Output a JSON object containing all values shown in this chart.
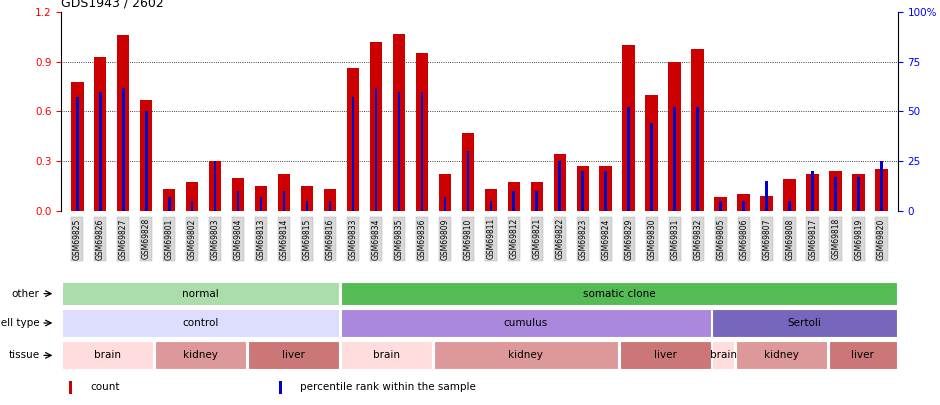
{
  "title": "GDS1943 / 2602",
  "samples": [
    "GSM69825",
    "GSM69826",
    "GSM69827",
    "GSM69828",
    "GSM69801",
    "GSM69802",
    "GSM69803",
    "GSM69804",
    "GSM69813",
    "GSM69814",
    "GSM69815",
    "GSM69816",
    "GSM69833",
    "GSM69834",
    "GSM69835",
    "GSM69836",
    "GSM69809",
    "GSM69810",
    "GSM69811",
    "GSM69812",
    "GSM69821",
    "GSM69822",
    "GSM69823",
    "GSM69824",
    "GSM69829",
    "GSM69830",
    "GSM69831",
    "GSM69832",
    "GSM69805",
    "GSM69806",
    "GSM69807",
    "GSM69808",
    "GSM69817",
    "GSM69818",
    "GSM69819",
    "GSM69820"
  ],
  "red_values": [
    0.78,
    0.93,
    1.06,
    0.67,
    0.13,
    0.17,
    0.3,
    0.2,
    0.15,
    0.22,
    0.15,
    0.13,
    0.86,
    1.02,
    1.07,
    0.95,
    0.22,
    0.47,
    0.13,
    0.17,
    0.17,
    0.34,
    0.27,
    0.27,
    1.0,
    0.7,
    0.9,
    0.98,
    0.08,
    0.1,
    0.09,
    0.19,
    0.22,
    0.24,
    0.22,
    0.25
  ],
  "blue_values": [
    0.57,
    0.6,
    0.62,
    0.5,
    0.07,
    0.05,
    0.25,
    0.1,
    0.07,
    0.1,
    0.05,
    0.05,
    0.57,
    0.62,
    0.6,
    0.6,
    0.07,
    0.3,
    0.05,
    0.1,
    0.1,
    0.25,
    0.2,
    0.2,
    0.52,
    0.44,
    0.52,
    0.52,
    0.05,
    0.05,
    0.15,
    0.05,
    0.2,
    0.17,
    0.17,
    0.25
  ],
  "ylim_left": [
    0,
    1.2
  ],
  "ylim_right": [
    0,
    100
  ],
  "yticks_left": [
    0,
    0.3,
    0.6,
    0.9,
    1.2
  ],
  "yticks_right": [
    0,
    25,
    50,
    75,
    100
  ],
  "bar_color": "#cc0000",
  "dot_color": "#0000cc",
  "other_row": {
    "groups": [
      {
        "label": "normal",
        "start": 0,
        "end": 11,
        "color": "#aaddaa"
      },
      {
        "label": "somatic clone",
        "start": 12,
        "end": 35,
        "color": "#55bb55"
      }
    ],
    "row_label": "other"
  },
  "celltype_row": {
    "groups": [
      {
        "label": "control",
        "start": 0,
        "end": 11,
        "color": "#ddddff"
      },
      {
        "label": "cumulus",
        "start": 12,
        "end": 27,
        "color": "#aa88dd"
      },
      {
        "label": "Sertoli",
        "start": 28,
        "end": 35,
        "color": "#7766bb"
      }
    ],
    "row_label": "cell type"
  },
  "tissue_row": {
    "groups": [
      {
        "label": "brain",
        "start": 0,
        "end": 3,
        "color": "#ffdddd"
      },
      {
        "label": "kidney",
        "start": 4,
        "end": 7,
        "color": "#dd9999"
      },
      {
        "label": "liver",
        "start": 8,
        "end": 11,
        "color": "#cc7777"
      },
      {
        "label": "brain",
        "start": 12,
        "end": 15,
        "color": "#ffdddd"
      },
      {
        "label": "kidney",
        "start": 16,
        "end": 23,
        "color": "#dd9999"
      },
      {
        "label": "liver",
        "start": 24,
        "end": 27,
        "color": "#cc7777"
      },
      {
        "label": "brain",
        "start": 28,
        "end": 28,
        "color": "#ffdddd"
      },
      {
        "label": "kidney",
        "start": 29,
        "end": 32,
        "color": "#dd9999"
      },
      {
        "label": "liver",
        "start": 33,
        "end": 35,
        "color": "#cc7777"
      }
    ],
    "row_label": "tissue"
  },
  "legend": [
    {
      "label": "count",
      "color": "#cc0000"
    },
    {
      "label": "percentile rank within the sample",
      "color": "#0000cc"
    }
  ]
}
